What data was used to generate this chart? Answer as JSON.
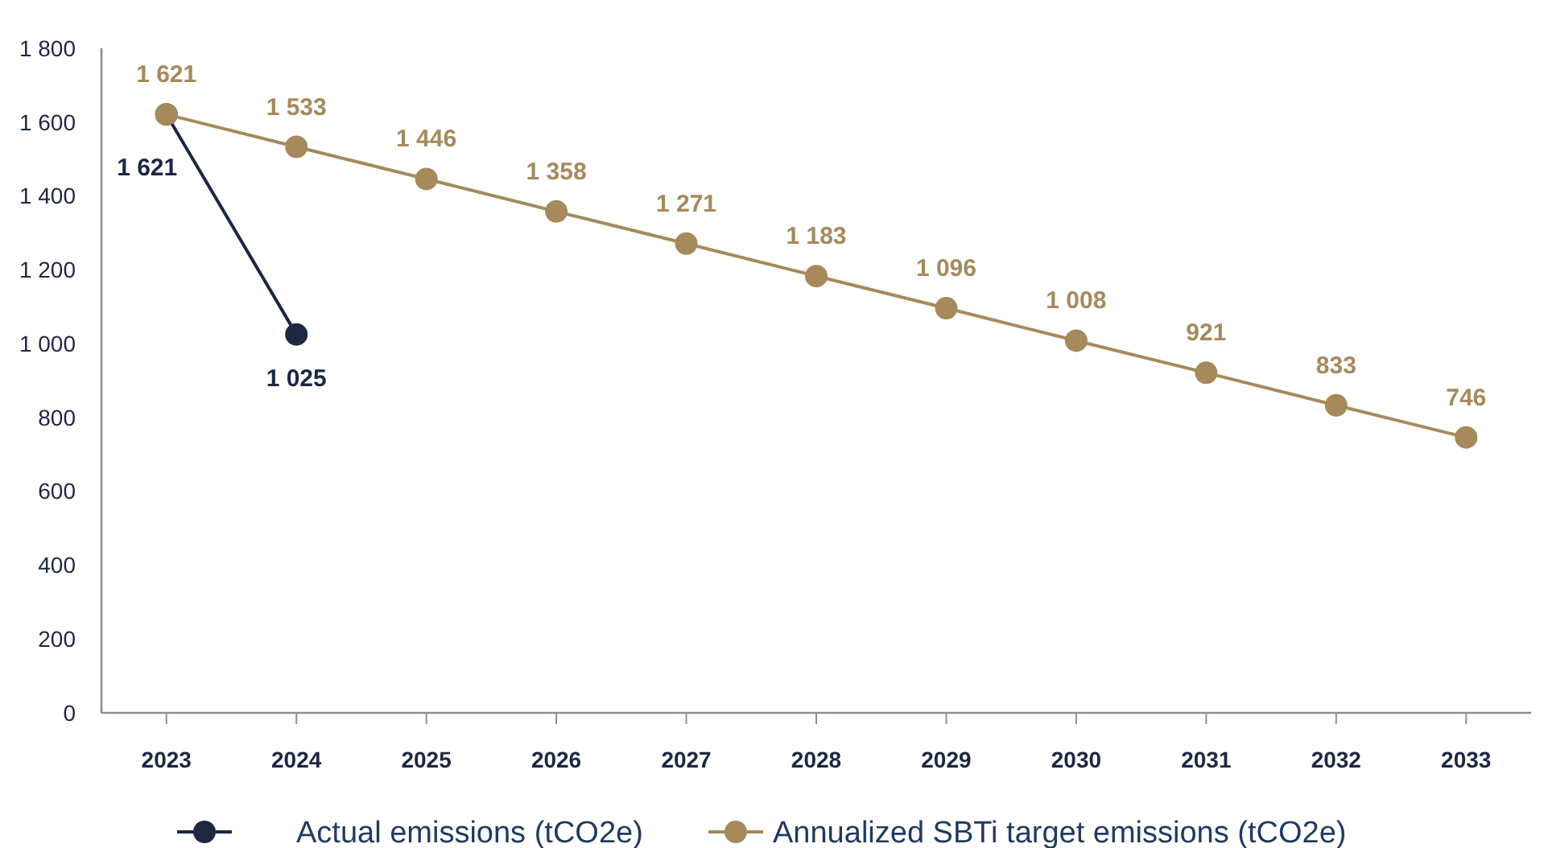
{
  "chart_data": {
    "type": "line",
    "categories": [
      "2023",
      "2024",
      "2025",
      "2026",
      "2027",
      "2028",
      "2029",
      "2030",
      "2031",
      "2032",
      "2033"
    ],
    "series": [
      {
        "name": "Actual emissions (tCO2e)",
        "color": "#1c2741",
        "values": [
          1621,
          1025,
          null,
          null,
          null,
          null,
          null,
          null,
          null,
          null,
          null
        ]
      },
      {
        "name": "Annualized SBTi target emissions (tCO2e)",
        "color": "#a68a5c",
        "values": [
          1621,
          1533,
          1446,
          1358,
          1271,
          1183,
          1096,
          1008,
          921,
          833,
          746
        ]
      }
    ],
    "ylim": [
      0,
      1800
    ],
    "yticks": [
      0,
      200,
      400,
      600,
      800,
      {
        "value": 1000,
        "label": "1 000"
      },
      {
        "value": 1200,
        "label": "1 200"
      },
      {
        "value": 1400,
        "label": "1 400"
      },
      {
        "value": 1600,
        "label": "1 600"
      },
      {
        "value": 1800,
        "label": "1 800"
      }
    ],
    "grid": false,
    "legend": "bottom",
    "marker": "circle",
    "line_style": "solid",
    "data_labels": true
  }
}
